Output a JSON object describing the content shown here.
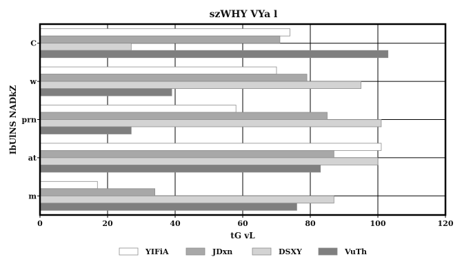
{
  "chart_data": {
    "type": "bar",
    "orientation": "horizontal",
    "title": "szWHY VYa l",
    "xlabel": "tG vL",
    "ylabel": "IbUlNS NADkZ",
    "categories": [
      "C",
      "w",
      "prn",
      "at",
      "m"
    ],
    "xlim": [
      0,
      120
    ],
    "xticks": [
      0,
      20,
      40,
      60,
      80,
      100,
      120
    ],
    "grid": true,
    "legend_position": "bottom",
    "series": [
      {
        "name": "YIFiA",
        "color": "#ffffff",
        "values": [
          74,
          70,
          58,
          101,
          17
        ]
      },
      {
        "name": "JDxn",
        "color": "#a8a8a8",
        "values": [
          71,
          79,
          85,
          87,
          34
        ]
      },
      {
        "name": "DSXY",
        "color": "#d3d3d3",
        "values": [
          27,
          95,
          101,
          100,
          87
        ]
      },
      {
        "name": "VuTh",
        "color": "#7f7f7f",
        "values": [
          103,
          39,
          27,
          83,
          76
        ]
      }
    ]
  }
}
